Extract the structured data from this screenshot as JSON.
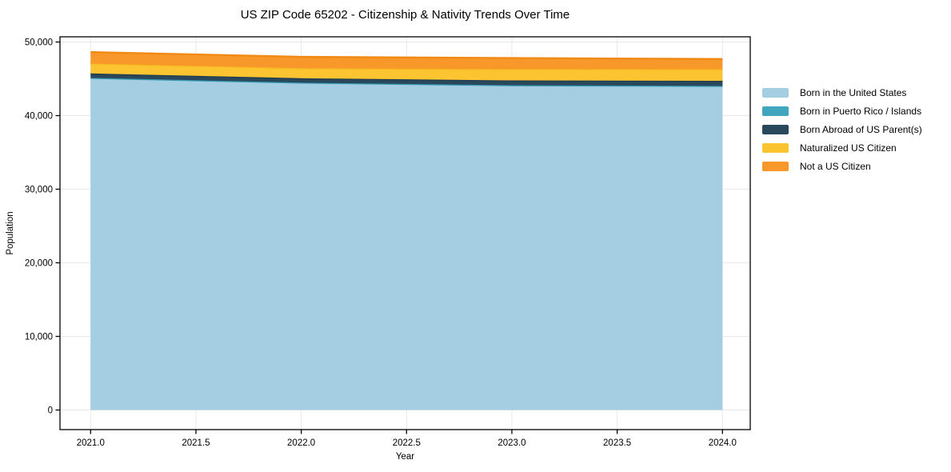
{
  "figure": {
    "title": "US ZIP Code 65202 - Citizenship & Nativity Trends Over Time",
    "background": "#ffffff",
    "spine_color": "#000000",
    "grid_color": "#e8e8e8",
    "text_color": "#000000"
  },
  "chart_data": {
    "type": "area",
    "stacked": true,
    "title": "US ZIP Code 65202 - Citizenship & Nativity Trends Over Time",
    "xlabel": "Year",
    "ylabel": "Population",
    "x": [
      2021,
      2022,
      2023,
      2024
    ],
    "series": [
      {
        "name": "Born in the United States",
        "color": "#a5cee3",
        "line_color": "#8fc1da",
        "values": [
          45100,
          44450,
          44100,
          44000
        ]
      },
      {
        "name": "Born in Puerto Rico / Islands",
        "color": "#41a5bd",
        "line_color": "#3597b0",
        "values": [
          30,
          30,
          30,
          30
        ]
      },
      {
        "name": "Born Abroad of US Parent(s)",
        "color": "#2a485c",
        "line_color": "#223c4e",
        "values": [
          600,
          600,
          650,
          700
        ]
      },
      {
        "name": "Naturalized US Citizen",
        "color": "#fcc431",
        "line_color": "#f6b71e",
        "values": [
          1350,
          1350,
          1530,
          1570
        ]
      },
      {
        "name": "Not a US Citizen",
        "color": "#f8982a",
        "line_color": "#f08a14",
        "values": [
          1550,
          1550,
          1500,
          1380
        ]
      }
    ],
    "totals_by_year": [
      48630,
      47980,
      47810,
      47680
    ],
    "x_tick_values": [
      2021.0,
      2021.5,
      2022.0,
      2022.5,
      2023.0,
      2023.5,
      2024.0
    ],
    "x_tick_labels": [
      "2021.0",
      "2021.5",
      "2022.0",
      "2022.5",
      "2023.0",
      "2023.5",
      "2024.0"
    ],
    "y_tick_values": [
      0,
      10000,
      20000,
      30000,
      40000,
      50000
    ],
    "y_tick_labels": [
      "0",
      "10,000",
      "20,000",
      "30,000",
      "40,000",
      "50,000"
    ],
    "xlim": [
      2020.85,
      2024.15
    ],
    "ylim": [
      -4000,
      50600
    ],
    "grid": true,
    "legend_position": "right-outside"
  }
}
